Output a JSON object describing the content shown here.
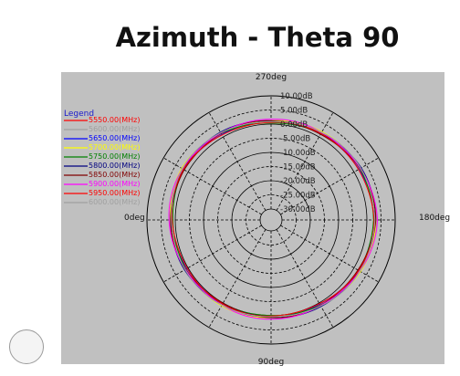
{
  "page": {
    "title": "Azimuth - Theta 90"
  },
  "chart_data": {
    "type": "polar-line",
    "title": "Azimuth - Theta 90",
    "legend_title": "Legend",
    "legend_position": "top-left",
    "angle_labels": {
      "top": "270deg",
      "bottom": "90deg",
      "left": "0deg",
      "right": "180deg"
    },
    "r_axis": {
      "unit": "dB",
      "ticks": [
        "10.00dB",
        "5.00dB",
        "0.00dB",
        "-5.00dB",
        "-10.00dB",
        "-15.00dB",
        "-20.00dB",
        "-25.00dB",
        "-30.00dB"
      ],
      "rlim": [
        -30,
        10
      ],
      "grid": true
    },
    "series": [
      {
        "name": "5550.00(MHz)",
        "color": "#ff0000",
        "offset": 0.0
      },
      {
        "name": "5600.00(MHz)",
        "color": "#a0a0a0",
        "offset": 0.2
      },
      {
        "name": "5650.00(MHz)",
        "color": "#0000ff",
        "offset": -0.2
      },
      {
        "name": "5700.00(MHz)",
        "color": "#ffff00",
        "offset": 0.3
      },
      {
        "name": "5750.00(MHz)",
        "color": "#008000",
        "offset": -0.3
      },
      {
        "name": "5800.00(MHz)",
        "color": "#000080",
        "offset": 0.1
      },
      {
        "name": "5850.00(MHz)",
        "color": "#800000",
        "offset": -0.1
      },
      {
        "name": "5900.00(MHz)",
        "color": "#ff00ff",
        "offset": 0.4
      },
      {
        "name": "5950.00(MHz)",
        "color": "#ff0000",
        "offset": -0.4
      },
      {
        "name": "6000.00(MHz)",
        "color": "#a0a0a0",
        "offset": 0.15
      }
    ],
    "pattern_db": {
      "angles_deg": [
        0,
        30,
        60,
        90,
        120,
        150,
        180,
        210,
        240,
        270,
        300,
        330
      ],
      "base_gain": [
        1.5,
        1.0,
        0.5,
        0.5,
        1.0,
        2.0,
        3.0,
        2.5,
        1.5,
        1.0,
        1.5,
        2.0
      ]
    }
  }
}
